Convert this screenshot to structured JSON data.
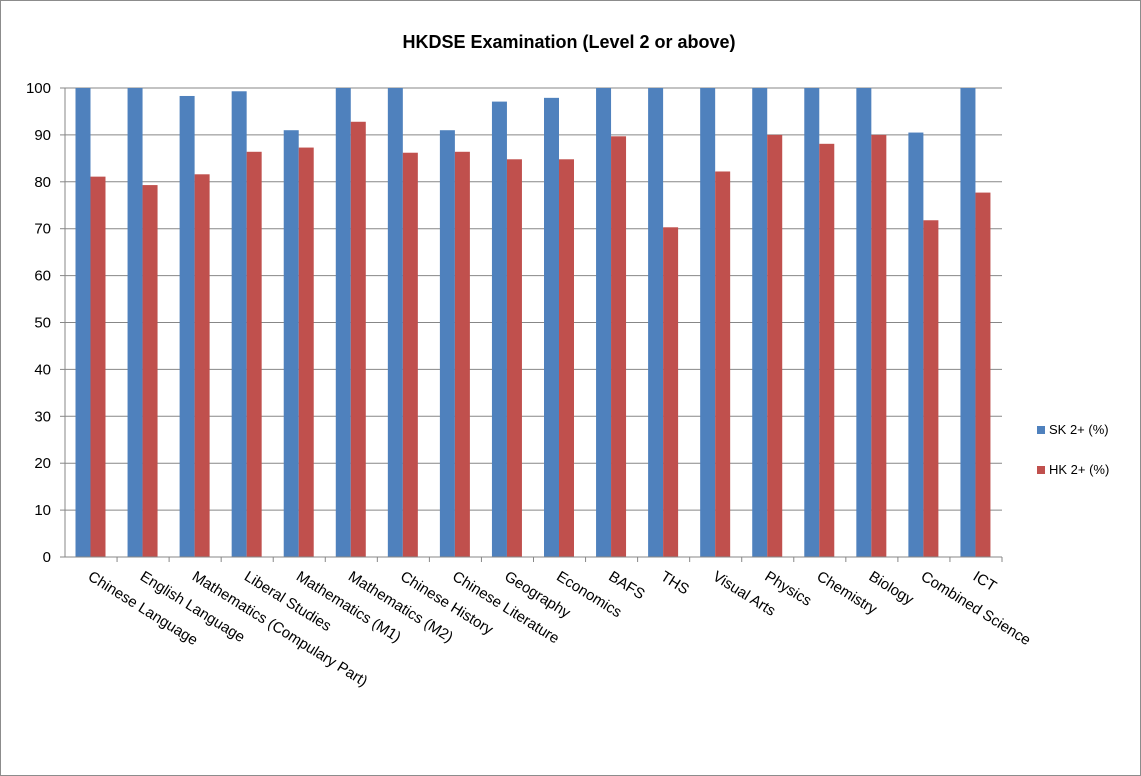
{
  "chart_data": {
    "type": "bar",
    "title": "HKDSE Examination  (Level 2 or above)",
    "categories": [
      "Chinese Language",
      "English Language",
      "Mathematics (Compulary Part)",
      "Liberal Studies",
      "Mathematics (M1)",
      "Mathematics (M2)",
      "Chinese History",
      "Chinese Literature",
      "Geography",
      "Economics",
      "BAFS",
      "THS",
      "Visual Arts",
      "Physics",
      "Chemistry",
      "Biology",
      "Combined Science",
      "ICT"
    ],
    "series": [
      {
        "name": "SK 2+ (%)",
        "color": "#4F81BD",
        "values": [
          100,
          100,
          98.3,
          99.3,
          91,
          100,
          100,
          91,
          97.1,
          97.9,
          100,
          100,
          100,
          100,
          100,
          100,
          90.5,
          100
        ]
      },
      {
        "name": "HK 2+ (%)",
        "color": "#C0504D",
        "values": [
          81.1,
          79.3,
          81.6,
          86.4,
          87.3,
          92.8,
          86.2,
          86.4,
          84.8,
          84.8,
          89.7,
          70.3,
          82.2,
          90,
          88.1,
          90,
          71.8,
          77.7
        ]
      }
    ],
    "yticks": [
      "0",
      "10",
      "20",
      "30",
      "40",
      "50",
      "60",
      "70",
      "80",
      "90",
      "100"
    ],
    "ylim": [
      0,
      100
    ],
    "xlabel": "",
    "ylabel": "",
    "grid": true,
    "legend_position": "right"
  }
}
